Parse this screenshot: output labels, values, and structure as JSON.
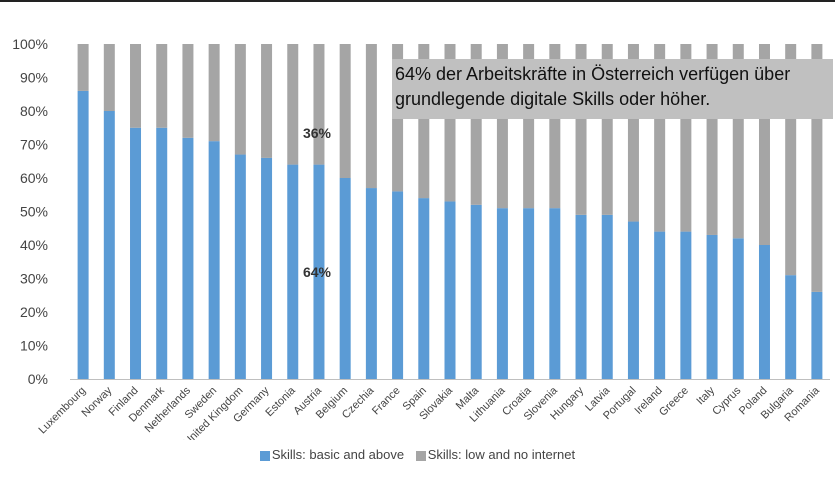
{
  "chart_data": {
    "type": "bar",
    "stacked": true,
    "categories": [
      "Luxembourg",
      "Norway",
      "Finland",
      "Denmark",
      "Netherlands",
      "Sweden",
      "United Kingdom",
      "Germany",
      "Estonia",
      "Austria",
      "Belgium",
      "Czechia",
      "France",
      "Spain",
      "Slovakia",
      "Malta",
      "Lithuania",
      "Croatia",
      "Slovenia",
      "Hungary",
      "Latvia",
      "Portugal",
      "Ireland",
      "Greece",
      "Italy",
      "Cyprus",
      "Poland",
      "Bulgaria",
      "Romania"
    ],
    "series": [
      {
        "name": "Skills: basic and above",
        "color": "#5b9bd5",
        "values": [
          86,
          80,
          75,
          75,
          72,
          71,
          67,
          66,
          64,
          64,
          60,
          57,
          56,
          54,
          53,
          52,
          51,
          51,
          51,
          49,
          49,
          47,
          44,
          44,
          43,
          42,
          40,
          31,
          26
        ]
      },
      {
        "name": "Skills: low and no internet",
        "color": "#a5a5a5",
        "values": [
          14,
          20,
          25,
          25,
          28,
          29,
          33,
          34,
          36,
          36,
          40,
          43,
          44,
          46,
          47,
          48,
          49,
          49,
          49,
          51,
          51,
          53,
          56,
          56,
          57,
          58,
          60,
          69,
          74
        ]
      }
    ],
    "ylim": [
      0,
      100
    ],
    "yticks": [
      "0%",
      "10%",
      "20%",
      "30%",
      "40%",
      "50%",
      "60%",
      "70%",
      "80%",
      "90%",
      "100%"
    ],
    "grid": false,
    "legend_position": "bottom",
    "annotation": {
      "lines": [
        "64% der Arbeitskräfte in Österreich verfügen über",
        "grundlegende digitale Skills oder höher."
      ]
    },
    "bar_labels": {
      "upper": "36%",
      "lower": "64%"
    }
  }
}
